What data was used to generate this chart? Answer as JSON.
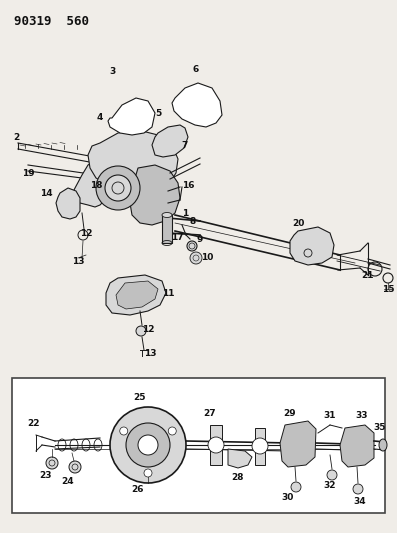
{
  "title": "90319  560",
  "bg": "#f0ede8",
  "lc": "#1a1a1a",
  "white": "#ffffff",
  "gray1": "#d8d8d8",
  "gray2": "#c0c0c0",
  "gray3": "#a8a8a8",
  "tc": "#111111",
  "fig_width": 3.97,
  "fig_height": 5.33,
  "dpi": 100,
  "fs_title": 9,
  "fs_label": 6.5
}
